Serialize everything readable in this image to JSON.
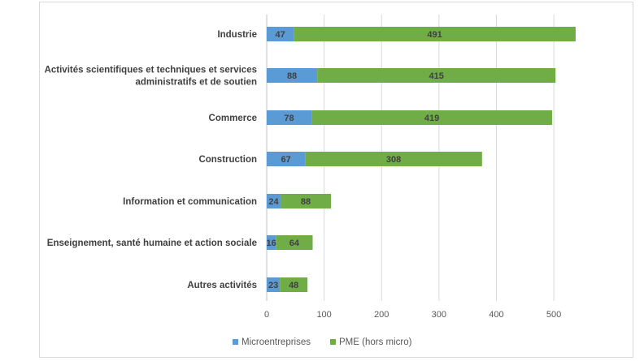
{
  "chart_data": {
    "type": "bar",
    "orientation": "horizontal",
    "stacked": true,
    "categories": [
      [
        "Industrie"
      ],
      [
        "Activités scientifiques et techniques et services",
        "administratifs et de soutien"
      ],
      [
        "Commerce"
      ],
      [
        "Construction"
      ],
      [
        "Information et communication"
      ],
      [
        "Enseignement, santé humaine et action sociale"
      ],
      [
        "Autres activités"
      ]
    ],
    "series": [
      {
        "name": "Microentreprises",
        "color": "#5b9bd5",
        "values": [
          47,
          88,
          78,
          67,
          24,
          16,
          23
        ]
      },
      {
        "name": "PME (hors micro)",
        "color": "#70ad47",
        "values": [
          491,
          415,
          419,
          308,
          88,
          64,
          48
        ]
      }
    ],
    "xlim": [
      0,
      500
    ],
    "xticks": [
      0,
      100,
      200,
      300,
      400,
      500
    ],
    "grid": true,
    "legend_position": "bottom"
  }
}
